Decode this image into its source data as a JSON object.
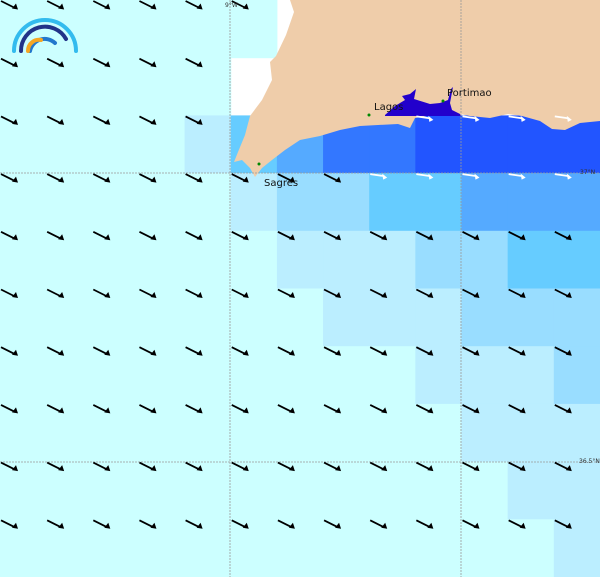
{
  "palette": [
    "#ccffff",
    "#bbeeff",
    "#99ddff",
    "#66ccff",
    "#55aaff",
    "#3377ff",
    "#2255ff",
    "#2200cc"
  ],
  "land_color": "#efcdaa",
  "cells": [
    [
      0,
      0,
      0,
      0,
      0,
      0,
      -1,
      -1,
      -1,
      -1,
      -1,
      -1,
      -1
    ],
    [
      0,
      0,
      0,
      0,
      0,
      -1,
      -1,
      -1,
      -1,
      -1,
      -1,
      -1,
      -1
    ],
    [
      0,
      0,
      0,
      0,
      1,
      3,
      4,
      5,
      5,
      6,
      6,
      6,
      6
    ],
    [
      0,
      0,
      0,
      0,
      0,
      1,
      2,
      2,
      3,
      3,
      4,
      4,
      4
    ],
    [
      0,
      0,
      0,
      0,
      0,
      0,
      1,
      1,
      1,
      2,
      2,
      3,
      3
    ],
    [
      0,
      0,
      0,
      0,
      0,
      0,
      0,
      1,
      1,
      1,
      2,
      2,
      2
    ],
    [
      0,
      0,
      0,
      0,
      0,
      0,
      0,
      0,
      0,
      1,
      1,
      1,
      2
    ],
    [
      0,
      0,
      0,
      0,
      0,
      0,
      0,
      0,
      0,
      0,
      1,
      1,
      1
    ],
    [
      0,
      0,
      0,
      0,
      0,
      0,
      0,
      0,
      0,
      0,
      0,
      1,
      1
    ],
    [
      0,
      0,
      0,
      0,
      0,
      0,
      0,
      0,
      0,
      0,
      0,
      0,
      1
    ]
  ],
  "arrow_direction": "south-east",
  "places": [
    {
      "name": "Sagres"
    },
    {
      "name": "Lagos"
    },
    {
      "name": "Portimao"
    }
  ],
  "graticule": {
    "lon_label": "9°W",
    "lat_labels": [
      "37°N",
      "36.5°N"
    ]
  }
}
